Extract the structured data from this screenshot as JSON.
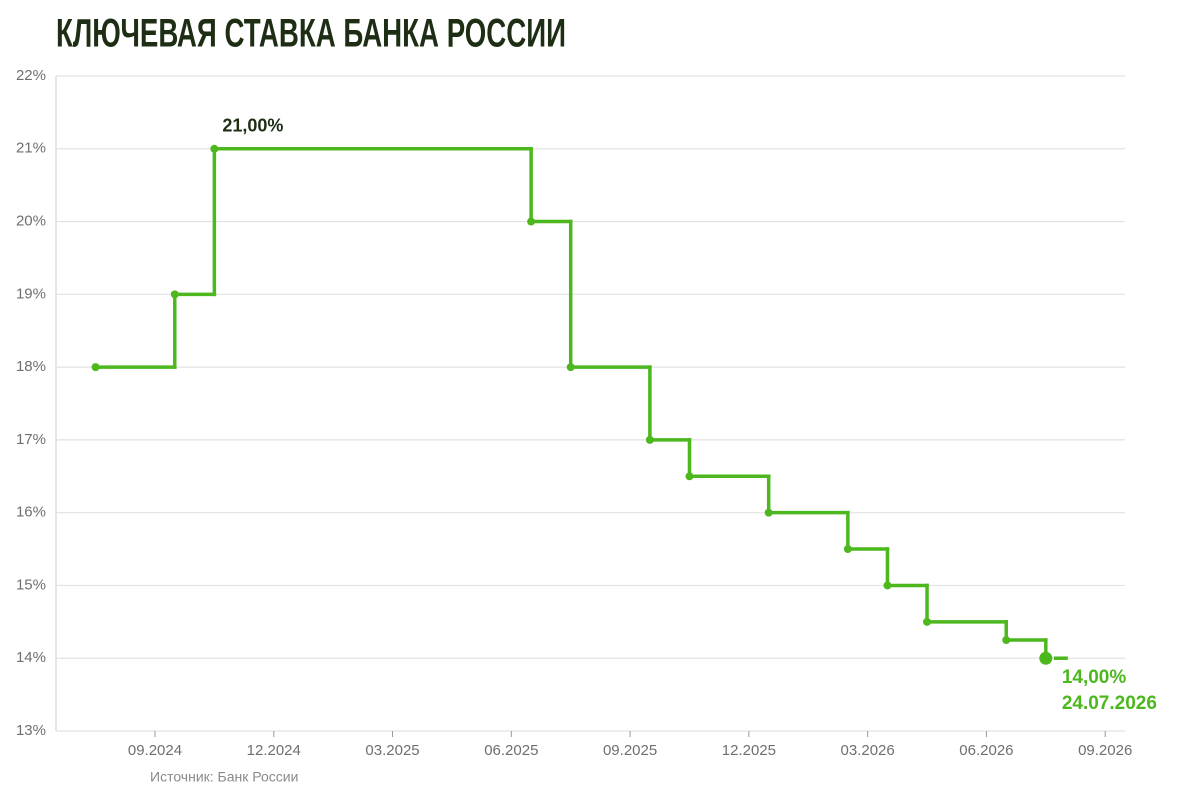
{
  "chart_data": {
    "type": "step",
    "title": "КЛЮЧЕВАЯ СТАВКА БАНКА РОССИИ",
    "source": "Источник: Банк России",
    "annotation": "24.07.2026",
    "x": [
      "2024-07",
      "2024-09",
      "2024-10",
      "2025-06",
      "2025-07",
      "2025-09",
      "2025-10",
      "2025-12",
      "2026-02",
      "2026-03",
      "2026-04",
      "2026-06",
      "2026-07"
    ],
    "series": [
      {
        "name": "Ключевая ставка",
        "color": "#4cb81e",
        "values": [
          18,
          19,
          21,
          20,
          18,
          17,
          16.5,
          16,
          15.5,
          15,
          14.5,
          14.25,
          14
        ],
        "value_labels": [
          null,
          null,
          "21,00%",
          null,
          null,
          null,
          null,
          null,
          null,
          null,
          null,
          null,
          "14,00%"
        ]
      }
    ],
    "xlim": [
      "2024-06",
      "2026-09"
    ],
    "xticks": [
      {
        "value": "2024-09",
        "label": "09.2024"
      },
      {
        "value": "2024-12",
        "label": "12.2024"
      },
      {
        "value": "2025-03",
        "label": "03.2025"
      },
      {
        "value": "2025-06",
        "label": "06.2025"
      },
      {
        "value": "2025-09",
        "label": "09.2025"
      },
      {
        "value": "2025-12",
        "label": "12.2025"
      },
      {
        "value": "2026-03",
        "label": "03.2026"
      },
      {
        "value": "2026-06",
        "label": "06.2026"
      },
      {
        "value": "2026-09",
        "label": "09.2026"
      }
    ],
    "ylim": [
      13,
      22
    ],
    "yticks": [
      {
        "value": 13,
        "label": "13%"
      },
      {
        "value": 14,
        "label": "14%"
      },
      {
        "value": 15,
        "label": "15%"
      },
      {
        "value": 16,
        "label": "16%"
      },
      {
        "value": 17,
        "label": "17%"
      },
      {
        "value": 18,
        "label": "18%"
      },
      {
        "value": 19,
        "label": "19%"
      },
      {
        "value": 20,
        "label": "20%"
      },
      {
        "value": 21,
        "label": "21%"
      },
      {
        "value": 22,
        "label": "22%"
      }
    ],
    "grid": true
  }
}
